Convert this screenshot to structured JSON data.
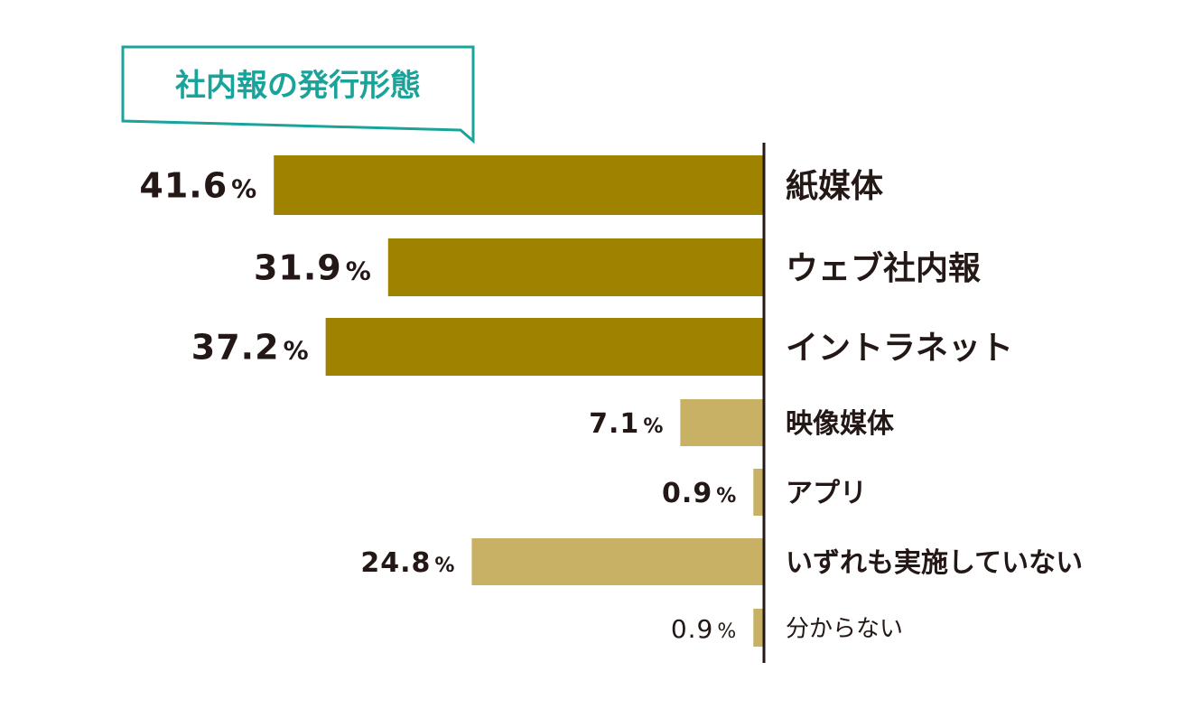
{
  "chart_data": {
    "type": "bar",
    "orientation": "horizontal",
    "title": "社内報の発行形態",
    "categories": [
      "紙媒体",
      "ウェブ社内報",
      "イントラネット",
      "映像媒体",
      "アプリ",
      "いずれも実施していない",
      "分からない"
    ],
    "values": [
      41.6,
      31.9,
      37.2,
      7.1,
      0.9,
      24.8,
      0.9
    ],
    "value_labels": [
      "41.6",
      "31.9",
      "37.2",
      "7.1",
      "0.9",
      "24.8",
      "0.9"
    ],
    "unit": "%",
    "xlim": [
      0,
      42
    ],
    "grid": false,
    "legend": "none",
    "colors": {
      "major": "#9e8200",
      "minor": "#c8b164",
      "axis": "#231815",
      "title_border": "#1aa39a",
      "title_text": "#1aa39a"
    },
    "emphasis": [
      "major",
      "major",
      "major",
      "minor",
      "minor",
      "minor",
      "minor"
    ]
  }
}
